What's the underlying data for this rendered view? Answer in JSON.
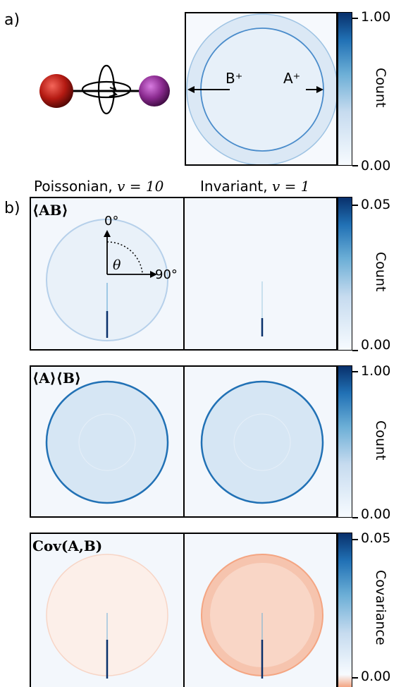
{
  "panel_a": {
    "label": "a)",
    "ring_labels": {
      "inner": "B⁺",
      "outer": "A⁺"
    },
    "colorbar": {
      "label": "Count",
      "max": "1.00",
      "min": "0.00"
    }
  },
  "panel_b": {
    "label": "b)",
    "column_titles": {
      "left_text": "Poissonian, ",
      "left_math": "v = 10",
      "right_text": "Invariant, ",
      "right_math": "v = 1"
    },
    "rows": [
      {
        "label": "⟨AB⟩",
        "colorbar": {
          "label": "Count",
          "max": "0.05",
          "min": "0.00"
        }
      },
      {
        "label": "⟨A⟩⟨B⟩",
        "colorbar": {
          "label": "Count",
          "max": "1.00",
          "min": "0.00"
        }
      },
      {
        "label": "Cov(A,B)",
        "colorbar": {
          "label": "Covariance",
          "max": "0.05",
          "min": "0.00"
        }
      }
    ],
    "angle_labels": {
      "top": "0°",
      "right": "90°",
      "theta": "θ"
    }
  },
  "colors": {
    "blue_dark": "#08306b",
    "blue_mid": "#2171b5",
    "blue_light": "#c6dbef",
    "red_atom": "#b41a12",
    "purple_atom": "#8a2a8f",
    "cov_negative": "#f4a582"
  }
}
